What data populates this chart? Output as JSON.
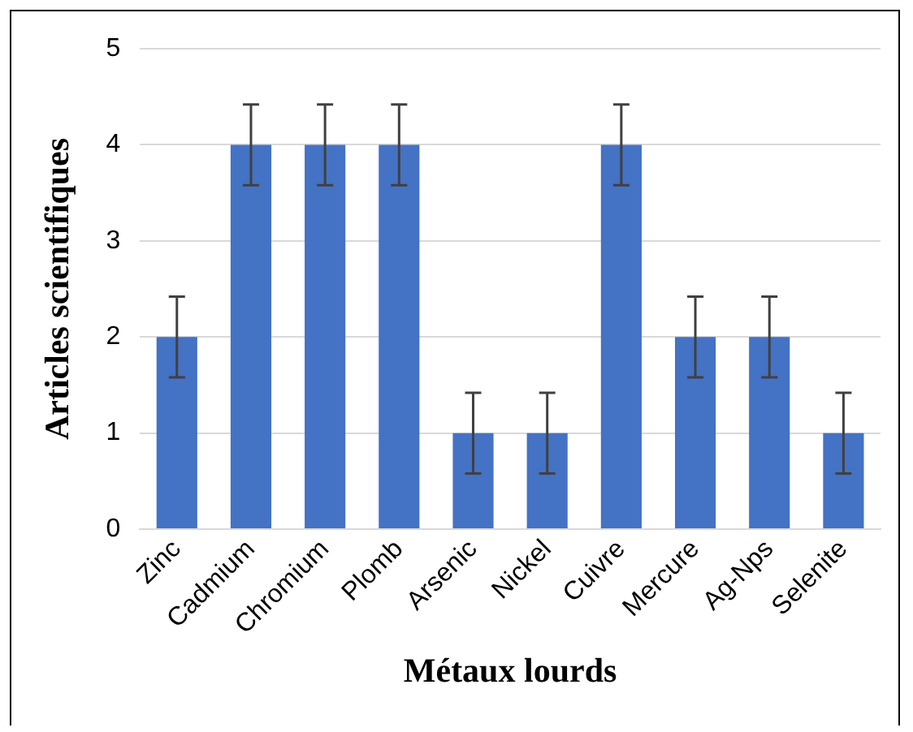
{
  "chart_data": {
    "type": "bar",
    "xlabel": "Métaux lourds",
    "ylabel": "Articles scientifiques",
    "categories": [
      "Zinc",
      "Cadmium",
      "Chromium",
      "Plomb",
      "Arsenic",
      "Nickel",
      "Cuivre",
      "Mercure",
      "Ag-Nps",
      "Selenite"
    ],
    "values": [
      2,
      4,
      4,
      4,
      1,
      1,
      4,
      2,
      2,
      1
    ],
    "errors": [
      0.42,
      0.42,
      0.42,
      0.42,
      0.42,
      0.42,
      0.42,
      0.42,
      0.42,
      0.42
    ],
    "color": "#4472c4",
    "ylim": [
      0,
      5
    ],
    "yticks": [
      0,
      1,
      2,
      3,
      4,
      5
    ],
    "grid": "y",
    "legend": false
  }
}
